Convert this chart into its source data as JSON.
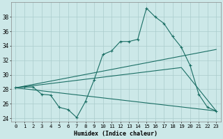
{
  "xlabel": "Humidex (Indice chaleur)",
  "bg_color": "#cce8e8",
  "line_color": "#1a6e64",
  "grid_color": "#aacccc",
  "xlim": [
    -0.5,
    23.5
  ],
  "ylim": [
    23.5,
    40.0
  ],
  "yticks": [
    24,
    26,
    28,
    30,
    32,
    34,
    36,
    38
  ],
  "xticks": [
    0,
    1,
    2,
    3,
    4,
    5,
    6,
    7,
    8,
    9,
    10,
    11,
    12,
    13,
    14,
    15,
    16,
    17,
    18,
    19,
    20,
    21,
    22,
    23
  ],
  "series1_x": [
    0,
    1,
    2,
    3,
    4,
    5,
    6,
    7,
    8,
    9,
    10,
    11,
    12,
    13,
    14,
    15,
    16,
    17,
    18,
    19,
    20,
    21,
    22,
    23
  ],
  "series1_y": [
    28.2,
    28.3,
    28.3,
    27.3,
    27.2,
    25.5,
    25.2,
    24.1,
    26.3,
    29.3,
    32.8,
    33.3,
    34.6,
    34.6,
    34.9,
    39.2,
    38.0,
    37.1,
    35.3,
    33.8,
    31.3,
    27.3,
    25.5,
    25.0
  ],
  "series2_x": [
    0,
    23
  ],
  "series2_y": [
    28.2,
    33.5
  ],
  "series3_x": [
    0,
    23
  ],
  "series3_y": [
    28.2,
    25.0
  ],
  "series4_x": [
    0,
    19,
    23
  ],
  "series4_y": [
    28.2,
    31.0,
    25.0
  ],
  "xlabel_fontsize": 6.0,
  "tick_fontsize": 5.2,
  "ytick_fontsize": 5.5
}
